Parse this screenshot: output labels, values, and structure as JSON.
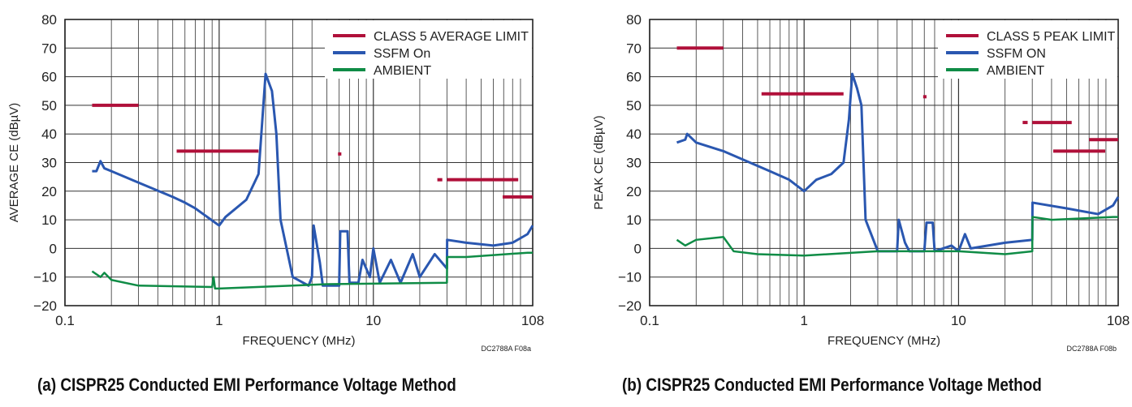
{
  "chart_data": [
    {
      "type": "line",
      "caption": "(a) CISPR25 Conducted EMI Performance Voltage Method",
      "note": "DC2788A F08a",
      "xlabel": "FREQUENCY (MHz)",
      "ylabel": "AVERAGE CE (dBµV)",
      "xscale": "log",
      "xlim": [
        0.1,
        108
      ],
      "ylim": [
        -20,
        80
      ],
      "xticks": [
        {
          "v": 0.1,
          "label": "0.1"
        },
        {
          "v": 1,
          "label": "1"
        },
        {
          "v": 10,
          "label": "10"
        },
        {
          "v": 108,
          "label": "108"
        }
      ],
      "yticks": [
        -20,
        -10,
        0,
        10,
        20,
        30,
        40,
        50,
        60,
        70,
        80
      ],
      "grid": true,
      "legend": "top-right",
      "colors": {
        "limit": "#b0103a",
        "ssfm": "#2a57b0",
        "ambient": "#0f8c46"
      },
      "limit": {
        "name": "CLASS 5 AVERAGE LIMIT",
        "segments": [
          [
            0.15,
            0.3,
            50
          ],
          [
            0.53,
            1.8,
            34
          ],
          [
            5.9,
            6.2,
            33
          ],
          [
            26,
            28,
            24
          ],
          [
            30,
            87,
            24
          ],
          [
            69,
            108,
            18
          ]
        ]
      },
      "series": [
        {
          "name": "SSFM On",
          "key": "ssfm",
          "points": [
            [
              0.15,
              27
            ],
            [
              0.16,
              27
            ],
            [
              0.17,
              30.5
            ],
            [
              0.18,
              28
            ],
            [
              0.2,
              27
            ],
            [
              0.3,
              23
            ],
            [
              0.5,
              18
            ],
            [
              0.6,
              16
            ],
            [
              0.7,
              14
            ],
            [
              1,
              8
            ],
            [
              1.1,
              11
            ],
            [
              1.5,
              17
            ],
            [
              1.8,
              26
            ],
            [
              2.0,
              61
            ],
            [
              2.2,
              55
            ],
            [
              2.35,
              40
            ],
            [
              2.5,
              10
            ],
            [
              3,
              -10
            ],
            [
              3.8,
              -13
            ],
            [
              4.0,
              -10
            ],
            [
              4.1,
              8
            ],
            [
              4.5,
              -5
            ],
            [
              4.7,
              -13
            ],
            [
              6,
              -13
            ],
            [
              6.1,
              6
            ],
            [
              6.8,
              6
            ],
            [
              7,
              -12
            ],
            [
              8,
              -12
            ],
            [
              8.5,
              -4
            ],
            [
              9.5,
              -10
            ],
            [
              10,
              0
            ],
            [
              11,
              -12
            ],
            [
              13,
              -4
            ],
            [
              15,
              -12
            ],
            [
              18,
              -2
            ],
            [
              20,
              -10
            ],
            [
              25,
              -2
            ],
            [
              30,
              -7
            ],
            [
              30.1,
              3
            ],
            [
              40,
              2
            ],
            [
              60,
              1
            ],
            [
              80,
              2
            ],
            [
              100,
              5
            ],
            [
              108,
              8
            ]
          ]
        },
        {
          "name": "AMBIENT",
          "key": "ambient",
          "points": [
            [
              0.15,
              -8
            ],
            [
              0.17,
              -10
            ],
            [
              0.18,
              -8.5
            ],
            [
              0.2,
              -11
            ],
            [
              0.3,
              -13
            ],
            [
              0.9,
              -13.5
            ],
            [
              0.92,
              -10
            ],
            [
              0.94,
              -14
            ],
            [
              1,
              -14
            ],
            [
              3,
              -13
            ],
            [
              5,
              -12.5
            ],
            [
              30,
              -12
            ],
            [
              30.1,
              -3
            ],
            [
              40,
              -3
            ],
            [
              100,
              -1.5
            ],
            [
              108,
              -1.5
            ]
          ]
        }
      ]
    },
    {
      "type": "line",
      "caption": "(b) CISPR25 Conducted EMI Performance Voltage Method",
      "note": "DC2788A F08b",
      "xlabel": "FREQUENCY (MHz)",
      "ylabel": "PEAK CE (dBµV)",
      "xscale": "log",
      "xlim": [
        0.1,
        108
      ],
      "ylim": [
        -20,
        80
      ],
      "xticks": [
        {
          "v": 0.1,
          "label": "0.1"
        },
        {
          "v": 1,
          "label": "1"
        },
        {
          "v": 10,
          "label": "10"
        },
        {
          "v": 108,
          "label": "108"
        }
      ],
      "yticks": [
        -20,
        -10,
        0,
        10,
        20,
        30,
        40,
        50,
        60,
        70,
        80
      ],
      "grid": true,
      "legend": "top-right",
      "colors": {
        "limit": "#b0103a",
        "ssfm": "#2a57b0",
        "ambient": "#0f8c46"
      },
      "limit": {
        "name": "CLASS 5 PEAK LIMIT",
        "segments": [
          [
            0.15,
            0.3,
            70
          ],
          [
            0.53,
            1.8,
            54
          ],
          [
            5.9,
            6.2,
            53
          ],
          [
            26,
            28,
            44
          ],
          [
            30,
            54,
            44
          ],
          [
            41,
            89,
            34
          ],
          [
            70,
            108,
            38
          ]
        ]
      },
      "series": [
        {
          "name": "SSFM ON",
          "key": "ssfm",
          "points": [
            [
              0.15,
              37
            ],
            [
              0.17,
              38
            ],
            [
              0.175,
              40
            ],
            [
              0.2,
              37
            ],
            [
              0.3,
              34
            ],
            [
              0.6,
              27
            ],
            [
              0.8,
              24
            ],
            [
              1,
              20
            ],
            [
              1.2,
              24
            ],
            [
              1.5,
              26
            ],
            [
              1.8,
              30
            ],
            [
              1.95,
              45
            ],
            [
              2.05,
              61
            ],
            [
              2.2,
              56
            ],
            [
              2.35,
              50
            ],
            [
              2.5,
              10
            ],
            [
              3,
              -1
            ],
            [
              4,
              -1
            ],
            [
              4.1,
              10
            ],
            [
              4.5,
              2
            ],
            [
              4.8,
              -1
            ],
            [
              6,
              -1
            ],
            [
              6.2,
              9
            ],
            [
              6.8,
              9
            ],
            [
              7,
              -1
            ],
            [
              9,
              1
            ],
            [
              10,
              -1
            ],
            [
              11,
              5
            ],
            [
              12,
              0
            ],
            [
              20,
              2
            ],
            [
              30,
              3
            ],
            [
              30.1,
              16
            ],
            [
              50,
              14
            ],
            [
              80,
              12
            ],
            [
              100,
              15
            ],
            [
              108,
              18
            ]
          ]
        },
        {
          "name": "AMBIENT",
          "key": "ambient",
          "points": [
            [
              0.15,
              3
            ],
            [
              0.17,
              1
            ],
            [
              0.2,
              3
            ],
            [
              0.3,
              4
            ],
            [
              0.35,
              -1
            ],
            [
              0.5,
              -2
            ],
            [
              1,
              -2.5
            ],
            [
              3,
              -1
            ],
            [
              10,
              -1
            ],
            [
              20,
              -2
            ],
            [
              30,
              -1
            ],
            [
              30.1,
              11
            ],
            [
              40,
              10
            ],
            [
              100,
              11
            ],
            [
              108,
              11
            ]
          ]
        }
      ]
    }
  ]
}
